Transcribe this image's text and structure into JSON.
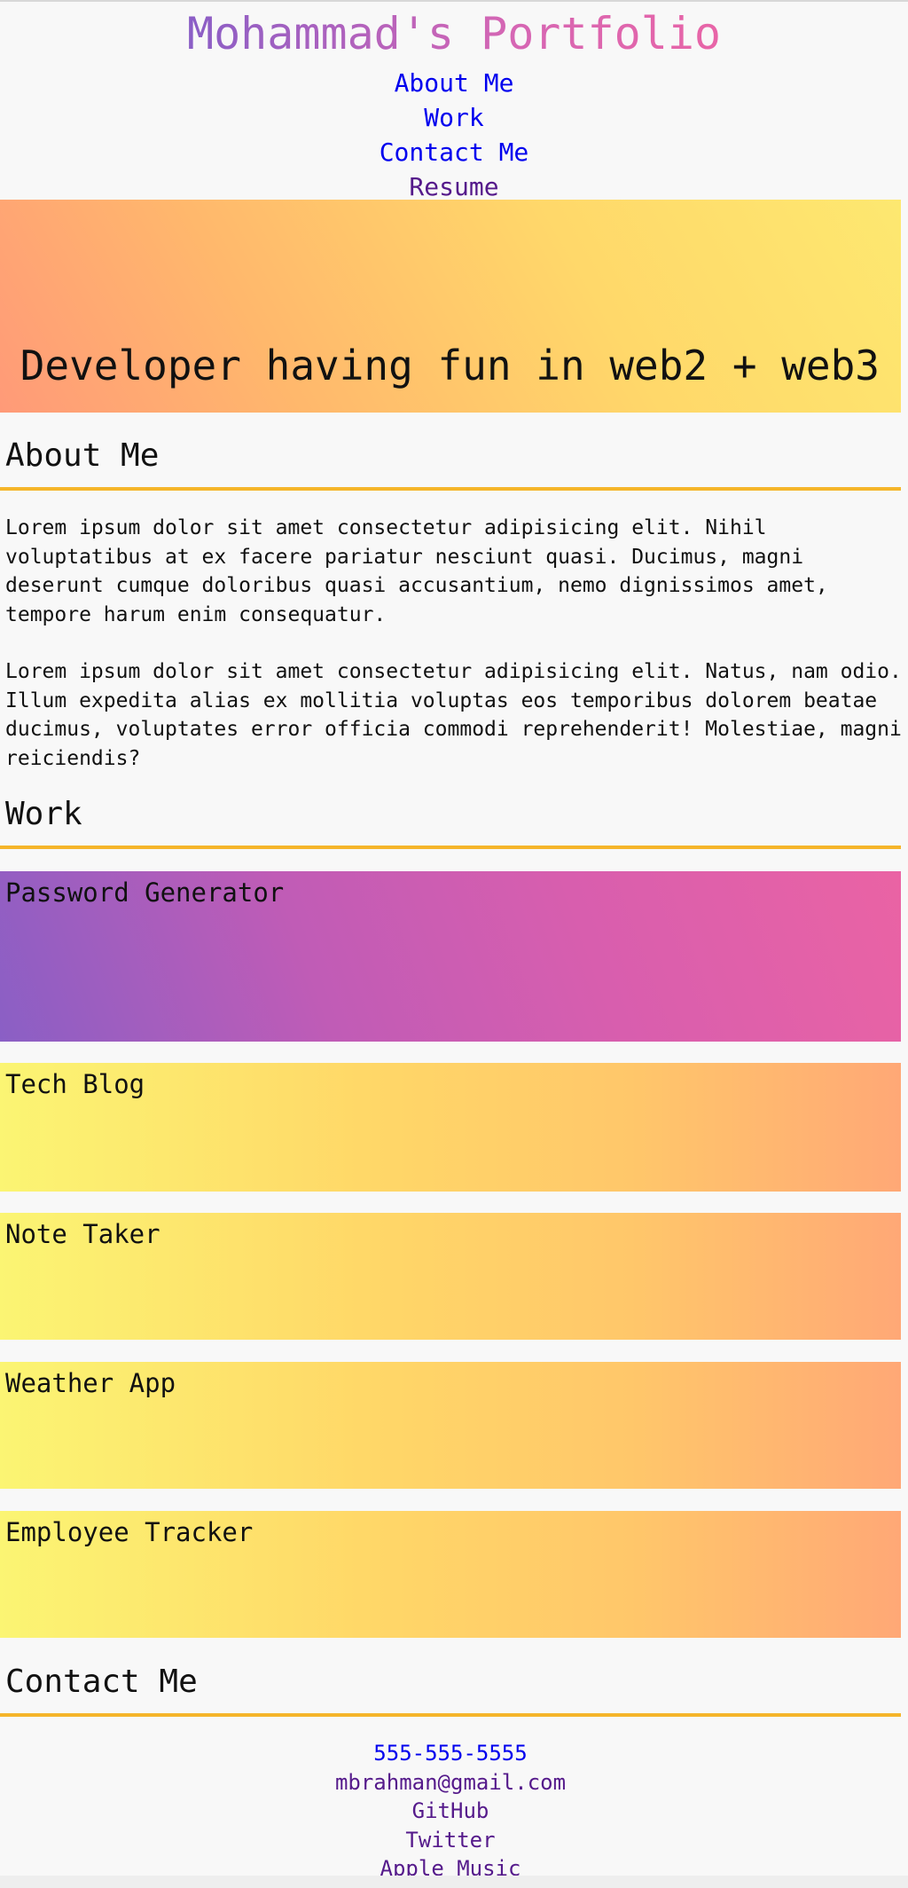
{
  "header": {
    "title": "Mohammad's Portfolio",
    "nav": [
      {
        "label": "About Me"
      },
      {
        "label": "Work"
      },
      {
        "label": "Contact Me"
      },
      {
        "label": "Resume"
      }
    ]
  },
  "hero": {
    "tagline": "Developer having fun in web2 + web3"
  },
  "about": {
    "heading": "About Me",
    "paragraphs": [
      "Lorem ipsum dolor sit amet consectetur adipisicing elit. Nihil voluptatibus at ex facere pariatur nesciunt quasi. Ducimus, magni deserunt cumque doloribus quasi accusantium, nemo dignissimos amet, tempore harum enim consequatur.",
      "Lorem ipsum dolor sit amet consectetur adipisicing elit. Natus, nam odio. Illum expedita alias ex mollitia voluptas eos temporibus dolorem beatae ducimus, voluptates error officia commodi reprehenderit! Molestiae, magni reiciendis?"
    ]
  },
  "work": {
    "heading": "Work",
    "projects": [
      {
        "title": "Password Generator"
      },
      {
        "title": "Tech Blog"
      },
      {
        "title": "Note Taker"
      },
      {
        "title": "Weather App"
      },
      {
        "title": "Employee Tracker"
      }
    ]
  },
  "contact": {
    "heading": "Contact Me",
    "links": [
      {
        "label": "555-555-5555"
      },
      {
        "label": "mbrahman@gmail.com"
      },
      {
        "label": "GitHub"
      },
      {
        "label": "Twitter"
      },
      {
        "label": "Apple Music"
      }
    ]
  },
  "colors": {
    "accent_rule": "#f5b52a",
    "link_unvisited": "#0000ee",
    "link_visited": "#551a8b",
    "title_gradient_start": "#8a5ec6",
    "title_gradient_end": "#e865a7"
  }
}
